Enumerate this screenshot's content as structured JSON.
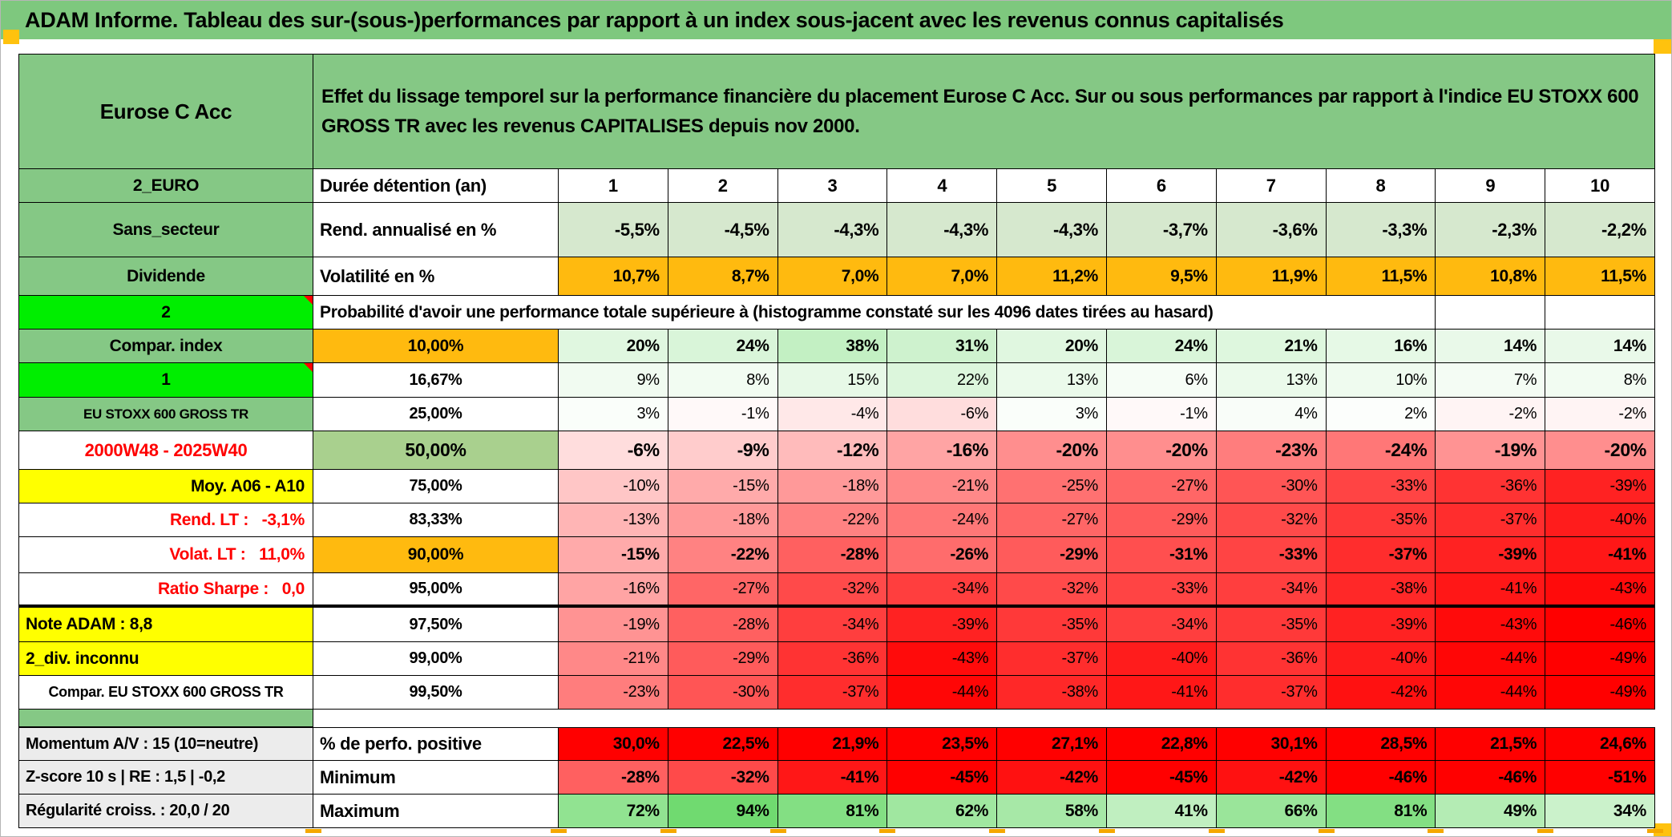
{
  "title": "ADAM Informe. Tableau des sur-(sous-)performances par rapport à un index sous-jacent avec les revenus connus capitalisés",
  "header": {
    "name": "Eurose C Acc",
    "description": "Effet du lissage temporel sur la performance financière du placement Eurose C Acc. Sur ou sous performances par rapport à l'indice EU STOXX 600 GROSS TR avec les revenus CAPITALISES depuis nov 2000."
  },
  "colors": {
    "titleGreen": "#7ec87e",
    "labelGreen": "#85c885",
    "brightGreen": "#00ee00",
    "lightGreen": "#d6e8ce",
    "orange": "#ffba0f",
    "yellow": "#ffff00",
    "gray": "#ececec",
    "green50": "#a9d08e",
    "red": "#ff0000",
    "white": "#ffffff"
  },
  "sheet": {
    "rows": [
      {
        "label": "2_EURO",
        "labelStyle": "green",
        "mid": "Durée détention (an)",
        "midStyle": "hdr",
        "values": [
          "1",
          "2",
          "3",
          "4",
          "5",
          "6",
          "7",
          "8",
          "9",
          "10"
        ],
        "cellStyle": "colhead"
      },
      {
        "label": "Sans_secteur",
        "labelStyle": "green",
        "mid": "Rend. annualisé en %",
        "midStyle": "hdr",
        "values": [
          "-5,5%",
          "-4,5%",
          "-4,3%",
          "-4,3%",
          "-4,3%",
          "-3,7%",
          "-3,6%",
          "-3,3%",
          "-2,3%",
          "-2,2%"
        ],
        "cellStyle": "flatLightGreen"
      },
      {
        "label": "Dividende",
        "labelStyle": "green",
        "mid": "Volatilité en %",
        "midStyle": "hdr",
        "values": [
          "10,7%",
          "8,7%",
          "7,0%",
          "7,0%",
          "11,2%",
          "9,5%",
          "11,9%",
          "11,5%",
          "10,8%",
          "11,5%"
        ],
        "cellStyle": "flatOrange"
      },
      {
        "label": "2",
        "labelStyle": "bright",
        "spanText": "Probabilité d'avoir une performance totale supérieure à (histogramme constaté sur les 4096 dates tirées au hasard)"
      },
      {
        "label": "Compar. index",
        "labelStyle": "green",
        "mid": "10,00%",
        "midStyle": "orangeBold",
        "values": [
          "20%",
          "24%",
          "38%",
          "31%",
          "20%",
          "24%",
          "21%",
          "16%",
          "14%",
          "14%"
        ],
        "cellStyle": "scaleBold"
      },
      {
        "label": "1",
        "labelStyle": "bright",
        "mid": "16,67%",
        "midStyle": "plain",
        "values": [
          "9%",
          "8%",
          "15%",
          "22%",
          "13%",
          "6%",
          "13%",
          "10%",
          "7%",
          "8%"
        ],
        "cellStyle": "scale"
      },
      {
        "label": "EU STOXX 600 GROSS TR",
        "labelStyle": "greenSmall",
        "mid": "25,00%",
        "midStyle": "plain",
        "values": [
          "3%",
          "-1%",
          "-4%",
          "-6%",
          "3%",
          "-1%",
          "4%",
          "2%",
          "-2%",
          "-2%"
        ],
        "cellStyle": "scale"
      },
      {
        "label": "2000W48 - 2025W40",
        "labelStyle": "redCenter",
        "mid": "50,00%",
        "midStyle": "green50",
        "values": [
          "-6%",
          "-9%",
          "-12%",
          "-16%",
          "-20%",
          "-20%",
          "-23%",
          "-24%",
          "-19%",
          "-20%"
        ],
        "cellStyle": "scaleBig"
      },
      {
        "label": "Moy. A06 - A10",
        "labelStyle": "yellowRight",
        "mid": "75,00%",
        "midStyle": "plain",
        "values": [
          "-10%",
          "-15%",
          "-18%",
          "-21%",
          "-25%",
          "-27%",
          "-30%",
          "-33%",
          "-36%",
          "-39%"
        ],
        "cellStyle": "scale"
      },
      {
        "label": "Rend. LT :   -3,1%",
        "labelStyle": "redRight",
        "mid": "83,33%",
        "midStyle": "plain",
        "values": [
          "-13%",
          "-18%",
          "-22%",
          "-24%",
          "-27%",
          "-29%",
          "-32%",
          "-35%",
          "-37%",
          "-40%"
        ],
        "cellStyle": "scale"
      },
      {
        "label": "Volat. LT :   11,0%",
        "labelStyle": "redRight",
        "mid": "90,00%",
        "midStyle": "orangeBold",
        "values": [
          "-15%",
          "-22%",
          "-28%",
          "-26%",
          "-29%",
          "-31%",
          "-33%",
          "-37%",
          "-39%",
          "-41%"
        ],
        "cellStyle": "scaleBold"
      },
      {
        "label": "Ratio Sharpe :   0,0",
        "labelStyle": "redRight",
        "mid": "95,00%",
        "midStyle": "plain",
        "values": [
          "-16%",
          "-27%",
          "-32%",
          "-34%",
          "-32%",
          "-33%",
          "-34%",
          "-38%",
          "-41%",
          "-43%"
        ],
        "cellStyle": "scale",
        "thickBottom": true
      },
      {
        "label": "Note ADAM : 8,8",
        "labelStyle": "yellowLeft",
        "mid": "97,50%",
        "midStyle": "plain",
        "values": [
          "-19%",
          "-28%",
          "-34%",
          "-39%",
          "-35%",
          "-34%",
          "-35%",
          "-39%",
          "-43%",
          "-46%"
        ],
        "cellStyle": "scale"
      },
      {
        "label": "2_div. inconnu",
        "labelStyle": "yellowLeft",
        "mid": "99,00%",
        "midStyle": "plain",
        "values": [
          "-21%",
          "-29%",
          "-36%",
          "-43%",
          "-37%",
          "-40%",
          "-36%",
          "-40%",
          "-44%",
          "-49%"
        ],
        "cellStyle": "scale"
      },
      {
        "label": "Compar. EU STOXX 600 GROSS TR",
        "labelStyle": "whiteSmall",
        "mid": "99,50%",
        "midStyle": "plain",
        "values": [
          "-23%",
          "-30%",
          "-37%",
          "-44%",
          "-38%",
          "-41%",
          "-37%",
          "-42%",
          "-44%",
          "-49%"
        ],
        "cellStyle": "scale"
      },
      {
        "separator": true
      },
      {
        "label": "Momentum A/V : 15 (10=neutre)",
        "labelStyle": "grayLeft",
        "mid": "% de perfo. positive",
        "midStyle": "hdr",
        "values": [
          "30,0%",
          "22,5%",
          "21,9%",
          "23,5%",
          "27,1%",
          "22,8%",
          "30,1%",
          "28,5%",
          "21,5%",
          "24,6%"
        ],
        "cellStyle": "flatRed",
        "topBorder": true
      },
      {
        "label": "Z-score 10 s | RE : 1,5 | -0,2",
        "labelStyle": "grayLeft",
        "mid": "Minimum",
        "midStyle": "hdr",
        "values": [
          "-28%",
          "-32%",
          "-41%",
          "-45%",
          "-42%",
          "-45%",
          "-42%",
          "-46%",
          "-46%",
          "-51%"
        ],
        "cellStyle": "redScaleBold"
      },
      {
        "label": "Régularité croiss. : 20,0 / 20",
        "labelStyle": "grayLeft",
        "mid": "Maximum",
        "midStyle": "hdr",
        "values": [
          "72%",
          "94%",
          "81%",
          "62%",
          "58%",
          "41%",
          "66%",
          "81%",
          "49%",
          "34%"
        ],
        "cellStyle": "greenScaleBold"
      }
    ]
  }
}
